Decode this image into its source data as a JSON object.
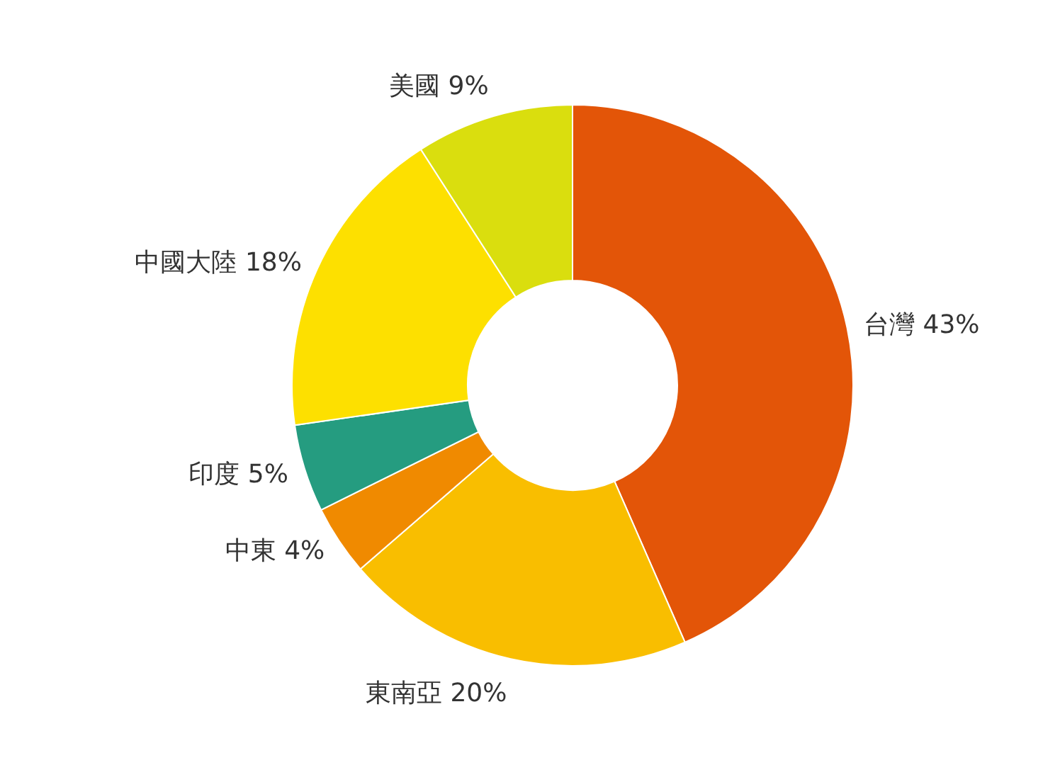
{
  "chart_data": {
    "type": "donut",
    "categories": [
      "台灣",
      "東南亞",
      "中東",
      "印度",
      "中國大陸",
      "美國"
    ],
    "values": [
      43,
      20,
      4,
      5,
      18,
      9
    ],
    "value_labels": [
      "43%",
      "20%",
      "4%",
      "5%",
      "18%",
      "9%"
    ],
    "colors": [
      "#e35508",
      "#f9be00",
      "#f08a00",
      "#259c80",
      "#fde000",
      "#dade0e"
    ]
  }
}
